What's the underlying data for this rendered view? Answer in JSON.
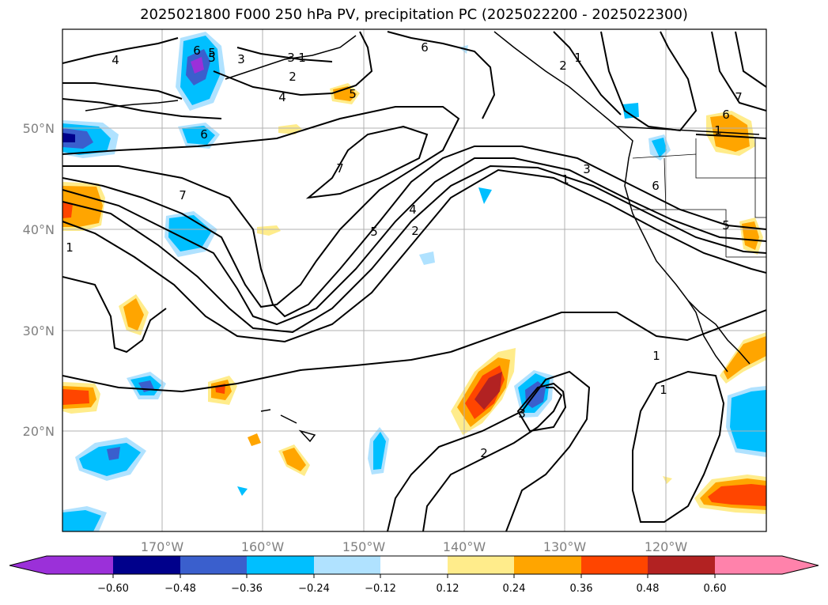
{
  "title": "2025021800 F000 250 hPa PV, precipitation PC (2025022200 - 2025022300)",
  "map": {
    "lon_labels": [
      "170°W",
      "160°W",
      "150°W",
      "140°W",
      "130°W",
      "120°W"
    ],
    "lat_labels": [
      "50°N",
      "40°N",
      "30°N",
      "20°N"
    ],
    "contour_labels": [
      "4",
      "6",
      "5",
      "3",
      "1",
      "2",
      "4",
      "5",
      "6",
      "5",
      "2",
      "1",
      "3",
      "6",
      "7",
      "7",
      "7",
      "1",
      "5",
      "4",
      "2",
      "1",
      "3",
      "1",
      "6",
      "5",
      "1",
      "1",
      "2",
      "3",
      "6"
    ]
  },
  "colorbar": {
    "labels": [
      "−0.60",
      "−0.48",
      "−0.36",
      "−0.24",
      "−0.12",
      "0.12",
      "0.24",
      "0.36",
      "0.48",
      "0.60"
    ],
    "colors": [
      "#9b30d9",
      "#00008b",
      "#3a5fcd",
      "#00bfff",
      "#b0e2ff",
      "#ffffff",
      "#ffec8b",
      "#ffa500",
      "#ff4500",
      "#b22222",
      "#ff82ab"
    ]
  }
}
